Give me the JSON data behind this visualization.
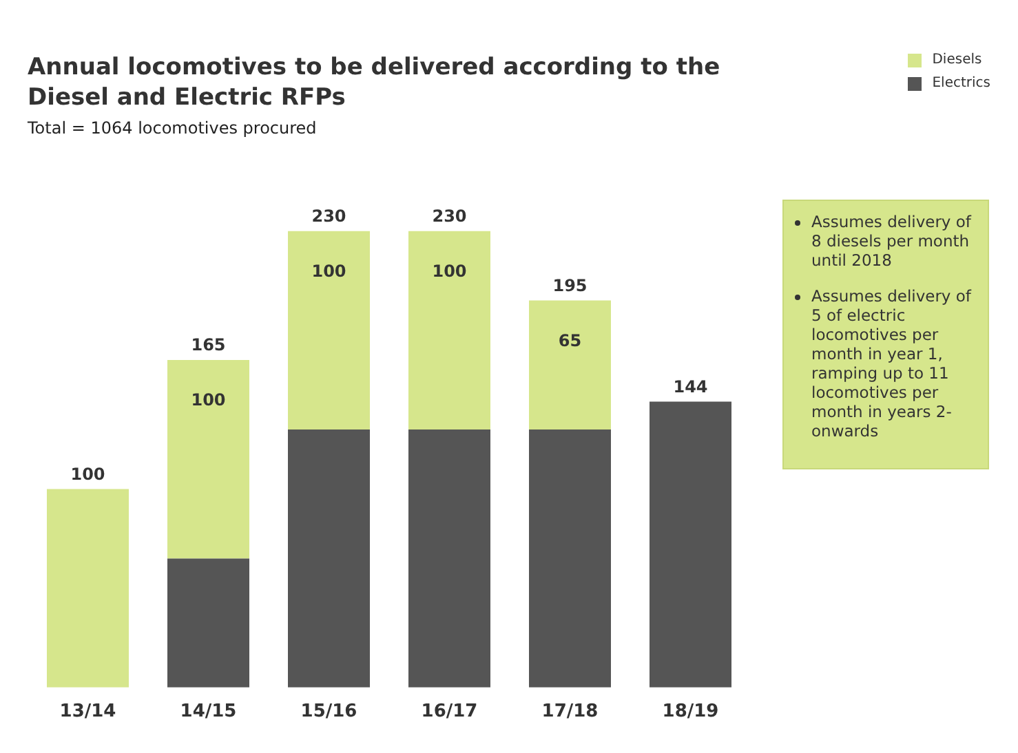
{
  "chart_data": {
    "type": "bar",
    "title": "Annual locomotives to be delivered according to the Diesel and Electric RFPs",
    "subtitle": "Total = 1064 locomotives procured",
    "categories": [
      "13/14",
      "14/15",
      "15/16",
      "16/17",
      "17/18",
      "18/19"
    ],
    "stacked": true,
    "series": [
      {
        "name": "Electrics",
        "color": "#555555",
        "values": [
          null,
          65,
          130,
          130,
          130,
          144
        ]
      },
      {
        "name": "Diesels",
        "color": "#d6e68c",
        "values": [
          100,
          100,
          100,
          100,
          65,
          null
        ],
        "value_labels": [
          null,
          "100",
          "100",
          "100",
          "65",
          null
        ]
      }
    ],
    "totals": [
      "100",
      "165",
      "230",
      "230",
      "195",
      "144"
    ],
    "annotations": [
      "Assumes delivery of 8 diesels per month until 2018",
      "Assumes delivery of 5 of electric locomotives per month in year 1, ramping up to 11 locomotives per month in years 2-onwards"
    ],
    "legend": "top right",
    "grid": false,
    "tick_labels": "x"
  }
}
